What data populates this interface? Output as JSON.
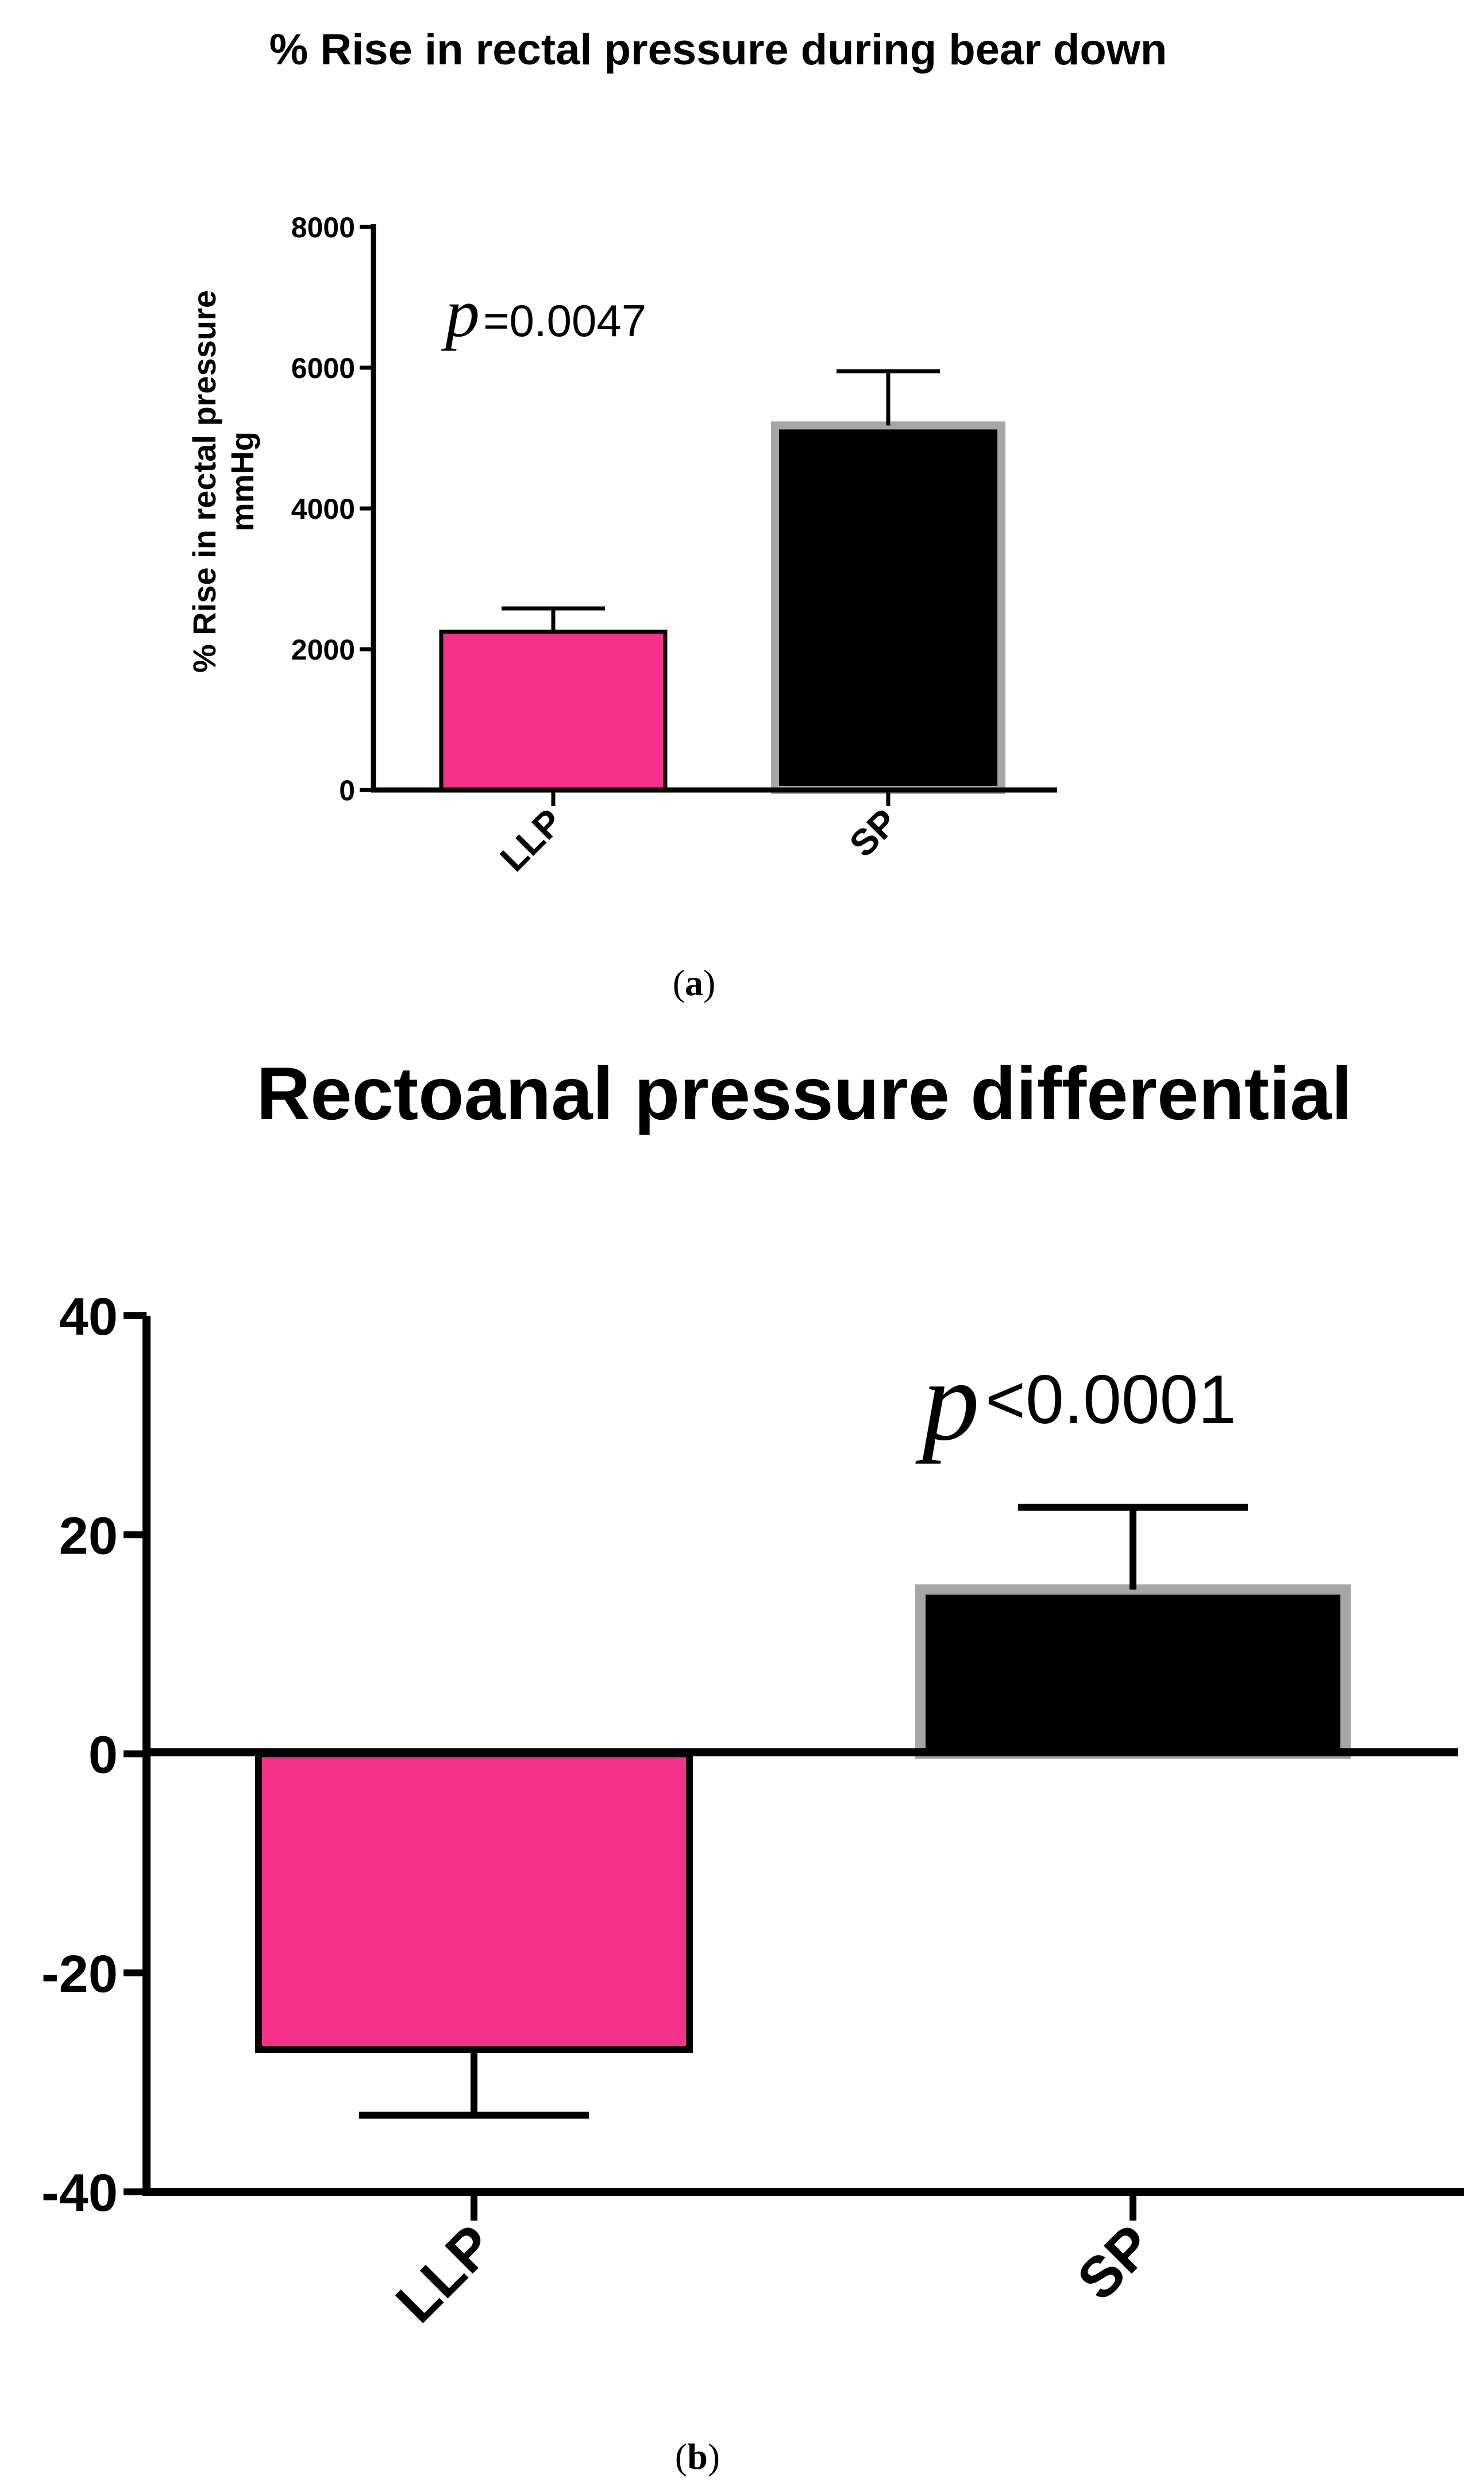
{
  "chart_data": [
    {
      "type": "bar",
      "title": "% Rise in rectal pressure during bear down",
      "xlabel": "",
      "ylabel": [
        "% Rise in rectal pressure",
        "mmHg"
      ],
      "categories": [
        "LLP",
        "SP"
      ],
      "values": [
        2250,
        5180
      ],
      "error_upper": [
        2580,
        5950
      ],
      "ylim": [
        0,
        8000
      ],
      "yticks": [
        "0",
        "2000",
        "4000",
        "6000",
        "8000"
      ],
      "ytick_values": [
        0,
        2000,
        4000,
        6000,
        8000
      ],
      "bar_colors": [
        "#f5318a",
        "#000000"
      ],
      "bar_borders": [
        "#000000",
        "#a6a6a6"
      ],
      "annotation": {
        "p_symbol": "p",
        "text": "=0.0047"
      },
      "caption": {
        "open": "(",
        "letter": "a",
        "close": ")"
      }
    },
    {
      "type": "bar",
      "title": "Rectoanal pressure differential",
      "xlabel": "",
      "ylabel": "",
      "categories": [
        "LLP",
        "SP"
      ],
      "values": [
        -27,
        15
      ],
      "error_ends": [
        -33,
        22.5
      ],
      "ylim": [
        -40,
        40
      ],
      "yticks": [
        "-40",
        "-20",
        "0",
        "20",
        "40"
      ],
      "ytick_values": [
        -40,
        -20,
        0,
        20,
        40
      ],
      "bar_colors": [
        "#f5318a",
        "#000000"
      ],
      "bar_borders": [
        "#000000",
        "#a6a6a6"
      ],
      "annotation": {
        "p_symbol": "p",
        "text": "<0.0001"
      },
      "caption": {
        "open": "(",
        "letter": "b",
        "close": ")"
      }
    }
  ]
}
